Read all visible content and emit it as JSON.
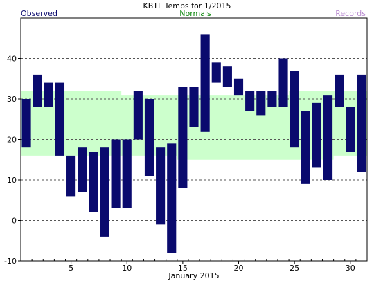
{
  "chart_data": {
    "type": "bar",
    "title": "KBTL Temps for  1/2015",
    "legend": {
      "observed": "Observed",
      "normals": "Normals",
      "records": "Records",
      "placement": "top"
    },
    "xlabel": "January 2015",
    "x_tick_labels": [
      "5",
      "10",
      "15",
      "20",
      "25",
      "30"
    ],
    "y_tick_labels": [
      "-10",
      "0",
      "10",
      "20",
      "30",
      "40"
    ],
    "ylim": [
      -10,
      50
    ],
    "grid": true,
    "days": [
      1,
      2,
      3,
      4,
      5,
      6,
      7,
      8,
      9,
      10,
      11,
      12,
      13,
      14,
      15,
      16,
      17,
      18,
      19,
      20,
      21,
      22,
      23,
      24,
      25,
      26,
      27,
      28,
      29,
      30,
      31
    ],
    "observed": {
      "name": "Observed",
      "high": [
        30,
        36,
        34,
        34,
        16,
        18,
        17,
        18,
        20,
        20,
        32,
        30,
        18,
        19,
        33,
        33,
        46,
        39,
        38,
        35,
        32,
        32,
        32,
        40,
        37,
        27,
        29,
        31,
        36,
        28,
        36
      ],
      "low": [
        18,
        28,
        28,
        16,
        6,
        7,
        2,
        -4,
        3,
        3,
        20,
        11,
        -1,
        -8,
        8,
        23,
        22,
        34,
        33,
        31,
        27,
        26,
        28,
        28,
        18,
        9,
        13,
        10,
        28,
        17,
        12
      ]
    },
    "normals": {
      "name": "Normals",
      "high": [
        32,
        32,
        32,
        32,
        32,
        32,
        32,
        32,
        32,
        31,
        31,
        31,
        31,
        31,
        31,
        31,
        31,
        31,
        31,
        31,
        31,
        31,
        31,
        31,
        32,
        32,
        32,
        32,
        32,
        32,
        32
      ],
      "low": [
        16,
        16,
        16,
        16,
        16,
        16,
        16,
        16,
        16,
        16,
        16,
        16,
        16,
        16,
        15,
        15,
        15,
        15,
        15,
        15,
        15,
        15,
        15,
        15,
        15,
        15,
        15,
        15,
        16,
        16,
        16
      ]
    },
    "colors": {
      "observed": "#0a0a6e",
      "normals": "#ccffcc",
      "title": "#000000",
      "observed_label": "#0a0a6e",
      "normals_label": "#008000",
      "records_label": "#b98cd0",
      "grid": "#555555"
    }
  }
}
